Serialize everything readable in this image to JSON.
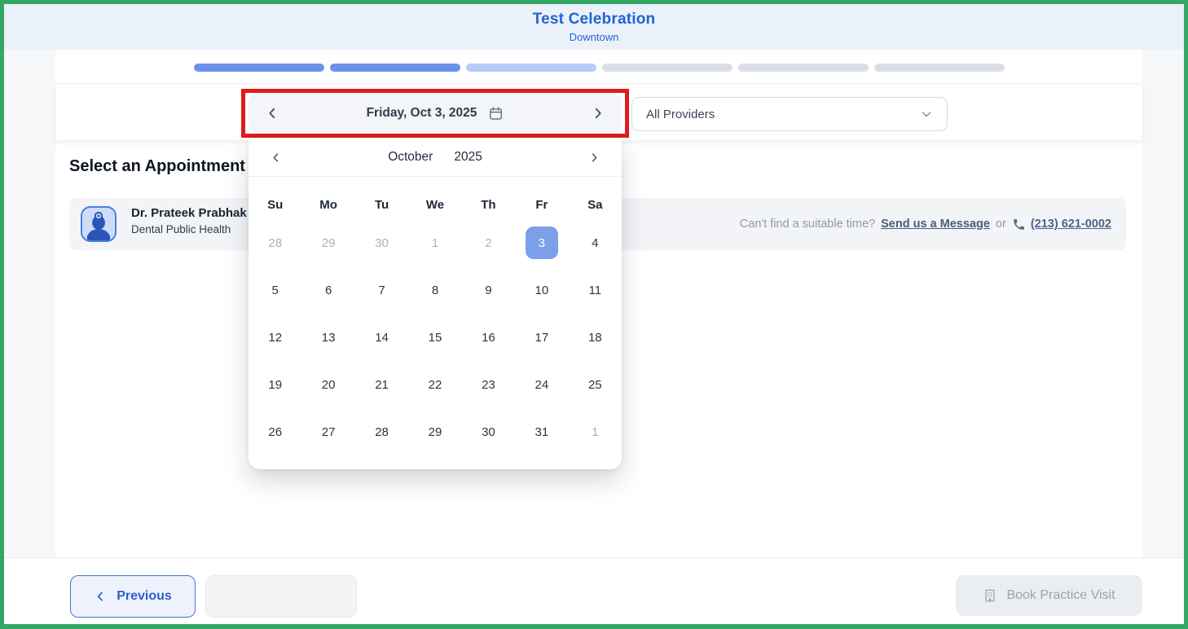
{
  "colors": {
    "frame_green": "#34a766",
    "annotation_red": "#de1c1c",
    "header_bg": "#eaf1fb",
    "brand_blue": "#2563cf",
    "page_bg": "#f6f7f9",
    "progress_done": "#6b92e8",
    "progress_active": "#b6cdf8",
    "progress_todo": "#d9dde4",
    "selected_day": "#7ba0e9",
    "primary_blue": "#2e5ec8"
  },
  "header": {
    "title": "Test Celebration",
    "subtitle": "Downtown"
  },
  "stepper": {
    "states": [
      "done",
      "done",
      "active",
      "todo",
      "todo",
      "todo"
    ]
  },
  "toolbar": {
    "date_label": "Friday, Oct 3, 2025",
    "prev_icon": "chevron-left",
    "next_icon": "chevron-right",
    "date_icon": "calendar",
    "providers_value": "All Providers"
  },
  "main": {
    "heading": "Select an Appointment",
    "provider": {
      "name": "Dr. Prateek Prabhak",
      "specialty": "Dental Public Health",
      "avatar_icon": "doctor"
    },
    "help": {
      "prompt": "Can't find a suitable time?",
      "message_link": "Send us a Message",
      "conjunction": "or",
      "phone_icon": "phone",
      "phone": "(213) 621-0002"
    }
  },
  "calendar": {
    "month": "October",
    "year": "2025",
    "day_headers": [
      "Su",
      "Mo",
      "Tu",
      "We",
      "Th",
      "Fr",
      "Sa"
    ],
    "days": [
      {
        "label": "28",
        "state": "muted"
      },
      {
        "label": "29",
        "state": "muted"
      },
      {
        "label": "30",
        "state": "muted"
      },
      {
        "label": "1",
        "state": "muted"
      },
      {
        "label": "2",
        "state": "muted"
      },
      {
        "label": "3",
        "state": "selected"
      },
      {
        "label": "4",
        "state": "normal"
      },
      {
        "label": "5",
        "state": "normal"
      },
      {
        "label": "6",
        "state": "normal"
      },
      {
        "label": "7",
        "state": "normal"
      },
      {
        "label": "8",
        "state": "normal"
      },
      {
        "label": "9",
        "state": "normal"
      },
      {
        "label": "10",
        "state": "normal"
      },
      {
        "label": "11",
        "state": "normal"
      },
      {
        "label": "12",
        "state": "normal"
      },
      {
        "label": "13",
        "state": "normal"
      },
      {
        "label": "14",
        "state": "normal"
      },
      {
        "label": "15",
        "state": "normal"
      },
      {
        "label": "16",
        "state": "normal"
      },
      {
        "label": "17",
        "state": "normal"
      },
      {
        "label": "18",
        "state": "normal"
      },
      {
        "label": "19",
        "state": "normal"
      },
      {
        "label": "20",
        "state": "normal"
      },
      {
        "label": "21",
        "state": "normal"
      },
      {
        "label": "22",
        "state": "normal"
      },
      {
        "label": "23",
        "state": "normal"
      },
      {
        "label": "24",
        "state": "normal"
      },
      {
        "label": "25",
        "state": "normal"
      },
      {
        "label": "26",
        "state": "normal"
      },
      {
        "label": "27",
        "state": "normal"
      },
      {
        "label": "28",
        "state": "normal"
      },
      {
        "label": "29",
        "state": "normal"
      },
      {
        "label": "30",
        "state": "normal"
      },
      {
        "label": "31",
        "state": "normal"
      },
      {
        "label": "1",
        "state": "muted"
      }
    ]
  },
  "footer": {
    "previous_label": "Previous",
    "book_label": "Book Practice Visit",
    "book_icon": "building"
  }
}
